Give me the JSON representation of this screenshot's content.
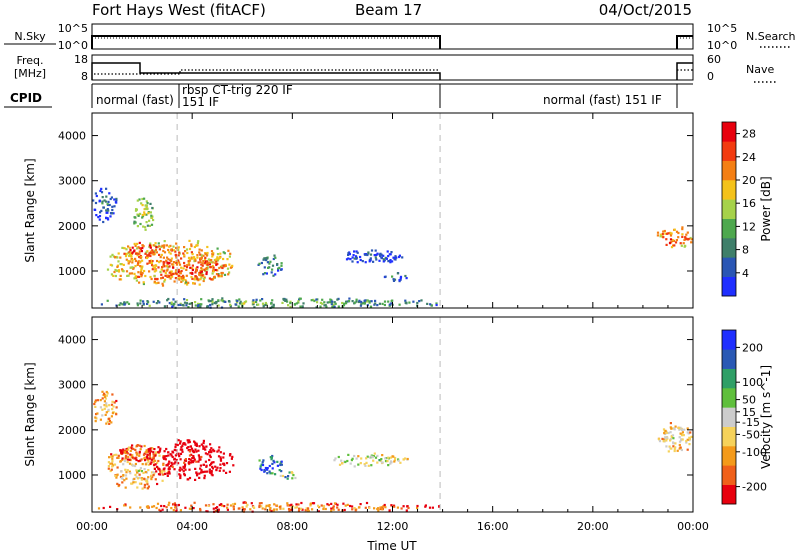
{
  "header": {
    "station": "Fort Hays West (fitACF)",
    "beam": "Beam 17",
    "date": "04/Oct/2015"
  },
  "strips": {
    "nsky": {
      "left_label": "N.Sky",
      "right_label": "N.Search",
      "left_ticks": [
        "10^5",
        "10^0"
      ],
      "right_ticks": [
        "10^5",
        "10^0"
      ]
    },
    "freq": {
      "left_label_1": "Freq.",
      "left_label_2": "[MHz]",
      "right_label": "Nave",
      "left_ticks": [
        "18",
        "8"
      ],
      "right_ticks": [
        "60",
        "0"
      ]
    },
    "cpid": {
      "label": "CPID",
      "segments": [
        "normal (fast)",
        "rbsp CT-trig 220 IF",
        "151 IF",
        "normal (fast) 151 IF"
      ]
    }
  },
  "colors": {
    "power": [
      "#1f2fff",
      "#2a56b4",
      "#3f7f6a",
      "#4ea84e",
      "#a6d24a",
      "#f4c21a",
      "#f47f14",
      "#f23b10",
      "#e8000e"
    ],
    "velocity": [
      "#e8000e",
      "#f0601a",
      "#f49a1a",
      "#f6d25a",
      "#cccccc",
      "#5fbf3c",
      "#2f9f66",
      "#2a59b4",
      "#1f2fff"
    ]
  },
  "chart_data": [
    {
      "type": "heatmap",
      "panel": "power",
      "xlabel": "",
      "ylabel": "Slant Range [km]",
      "x_ticks": [
        "00:00",
        "04:00",
        "08:00",
        "12:00",
        "16:00",
        "20:00",
        "00:00"
      ],
      "y_ticks": [
        "1000",
        "2000",
        "3000",
        "4000"
      ],
      "xlim_hours": [
        0,
        24
      ],
      "ylim_km": [
        180,
        4500
      ],
      "colorbar": {
        "label": "Power [dB]",
        "ticks": [
          "4",
          "8",
          "12",
          "16",
          "20",
          "24",
          "28"
        ],
        "range": [
          0,
          30
        ]
      },
      "blobs": [
        {
          "t0": 0.0,
          "t1": 1.0,
          "r0": 2100,
          "r1": 2900,
          "level": 0.25
        },
        {
          "t0": 0.5,
          "t1": 5.6,
          "r0": 700,
          "r1": 1700,
          "level": 0.78
        },
        {
          "t0": 1.2,
          "t1": 2.8,
          "r0": 1300,
          "r1": 1650,
          "level": 0.95
        },
        {
          "t0": 2.8,
          "t1": 5.6,
          "r0": 800,
          "r1": 1300,
          "level": 0.9
        },
        {
          "t0": 1.6,
          "t1": 2.4,
          "r0": 1900,
          "r1": 2700,
          "level": 0.6
        },
        {
          "t0": 6.6,
          "t1": 7.6,
          "r0": 900,
          "r1": 1400,
          "level": 0.4
        },
        {
          "t0": 9.6,
          "t1": 12.4,
          "r0": 1200,
          "r1": 1500,
          "level": 0.2
        },
        {
          "t0": 11.6,
          "t1": 12.6,
          "r0": 800,
          "r1": 1000,
          "level": 0.3
        },
        {
          "t0": 0.0,
          "t1": 14.0,
          "r0": 200,
          "r1": 420,
          "level": 0.45
        },
        {
          "t0": 22.5,
          "t1": 24.0,
          "r0": 1500,
          "r1": 2000,
          "level": 0.85
        }
      ]
    },
    {
      "type": "heatmap",
      "panel": "velocity",
      "xlabel": "Time UT",
      "ylabel": "Slant Range [km]",
      "x_ticks": [
        "00:00",
        "04:00",
        "08:00",
        "12:00",
        "16:00",
        "20:00",
        "00:00"
      ],
      "y_ticks": [
        "1000",
        "2000",
        "3000",
        "4000"
      ],
      "xlim_hours": [
        0,
        24
      ],
      "ylim_km": [
        180,
        4500
      ],
      "colorbar": {
        "label": "Velocity [m s^-1]",
        "ticks": [
          "200",
          "100",
          "50",
          "15",
          "-15",
          "-50",
          "-100",
          "-200"
        ],
        "range": [
          -250,
          250
        ]
      },
      "blobs": [
        {
          "t0": 0.0,
          "t1": 1.0,
          "r0": 2100,
          "r1": 2900,
          "level": 0.45
        },
        {
          "t0": 0.5,
          "t1": 3.0,
          "r0": 700,
          "r1": 1700,
          "level": 0.45
        },
        {
          "t0": 2.0,
          "t1": 5.6,
          "r0": 900,
          "r1": 1800,
          "level": 0.05
        },
        {
          "t0": 1.0,
          "t1": 2.6,
          "r0": 1300,
          "r1": 1700,
          "level": 0.25
        },
        {
          "t0": 6.6,
          "t1": 7.6,
          "r0": 1000,
          "r1": 1450,
          "level": 0.95
        },
        {
          "t0": 7.4,
          "t1": 8.2,
          "r0": 900,
          "r1": 1100,
          "level": 0.7
        },
        {
          "t0": 9.6,
          "t1": 12.6,
          "r0": 1200,
          "r1": 1500,
          "level": 0.6
        },
        {
          "t0": 0.0,
          "t1": 14.0,
          "r0": 200,
          "r1": 420,
          "level": 0.3
        },
        {
          "t0": 22.5,
          "t1": 24.0,
          "r0": 1500,
          "r1": 2200,
          "level": 0.5
        }
      ]
    }
  ]
}
